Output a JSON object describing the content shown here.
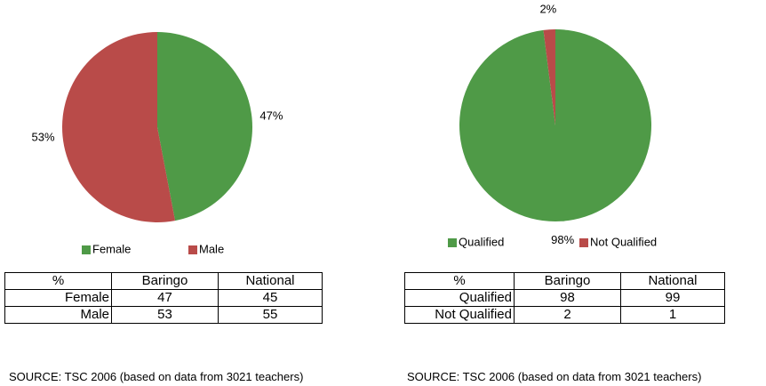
{
  "chart_data": [
    {
      "type": "pie",
      "categories": [
        "Female",
        "Male"
      ],
      "values": [
        47,
        53
      ],
      "value_labels": [
        "47%",
        "53%"
      ],
      "colors": [
        "#4f9a47",
        "#b94b49"
      ],
      "legend": "bottom"
    },
    {
      "type": "pie",
      "categories": [
        "Qualified",
        "Not Qualified"
      ],
      "values": [
        98,
        2
      ],
      "value_labels": [
        "98%",
        "2%"
      ],
      "colors": [
        "#4f9a47",
        "#b94b49"
      ],
      "legend": "bottom"
    }
  ],
  "tables": [
    {
      "header": [
        "%",
        "Baringo",
        "National"
      ],
      "rows": [
        [
          "Female",
          47,
          45
        ],
        [
          "Male",
          53,
          55
        ]
      ]
    },
    {
      "header": [
        "%",
        "Baringo",
        "National"
      ],
      "rows": [
        [
          "Qualified",
          98,
          99
        ],
        [
          "Not Qualified",
          2,
          1
        ]
      ]
    }
  ],
  "sources": [
    "SOURCE: TSC 2006 (based on data from 3021 teachers)",
    "SOURCE: TSC 2006 (based on data from 3021 teachers)"
  ]
}
